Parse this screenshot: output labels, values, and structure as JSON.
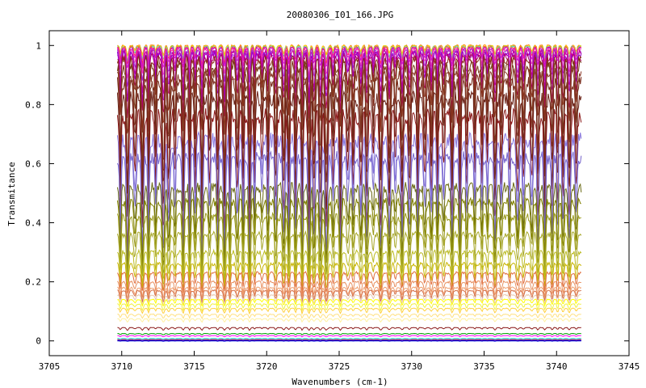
{
  "chart_data": {
    "type": "line",
    "title": "20080306_I01_166.JPG",
    "xlabel": "Wavenumbers (cm-1)",
    "ylabel": "Transmitance",
    "xlim": [
      3705,
      3745
    ],
    "ylim": [
      -0.05,
      1.05
    ],
    "x_ticks": [
      3705,
      3710,
      3715,
      3720,
      3725,
      3730,
      3735,
      3740,
      3745
    ],
    "y_ticks": [
      0,
      0.2,
      0.4,
      0.6,
      0.8,
      1
    ],
    "x_tick_labels": [
      "3705",
      "3710",
      "3715",
      "3720",
      "3725",
      "3730",
      "3735",
      "3740",
      "3745"
    ],
    "y_tick_labels": [
      "0",
      "0.2",
      "0.4",
      "0.6",
      "0.8",
      "1"
    ],
    "x_range": [
      3709.7,
      3741.7
    ],
    "grid": false,
    "legend": "none",
    "series_note_levels_and_colors": "baseline transmittance and absorption-line depth per spectrum",
    "series": [
      {
        "baseline": 1.0,
        "depth": 0.03,
        "color": "#ff7f00"
      },
      {
        "baseline": 0.998,
        "depth": 0.03,
        "color": "#ffd700"
      },
      {
        "baseline": 0.996,
        "depth": 0.04,
        "color": "#99cc33"
      },
      {
        "baseline": 0.995,
        "depth": 0.04,
        "color": "#66cccc"
      },
      {
        "baseline": 0.993,
        "depth": 0.05,
        "color": "#ff4040"
      },
      {
        "baseline": 0.99,
        "depth": 0.06,
        "color": "#cc00cc"
      },
      {
        "baseline": 0.985,
        "depth": 0.08,
        "color": "#ff33aa"
      },
      {
        "baseline": 0.98,
        "depth": 0.1,
        "color": "#9933cc"
      },
      {
        "baseline": 0.975,
        "depth": 0.13,
        "color": "#cc0099"
      },
      {
        "baseline": 0.97,
        "depth": 0.15,
        "color": "#9900cc"
      },
      {
        "baseline": 0.96,
        "depth": 0.18,
        "color": "#b0006a"
      },
      {
        "baseline": 0.95,
        "depth": 0.22,
        "color": "#8b2e1a"
      },
      {
        "baseline": 0.93,
        "depth": 0.3,
        "color": "#7a3b1a"
      },
      {
        "baseline": 0.9,
        "depth": 0.32,
        "color": "#8b3a2a"
      },
      {
        "baseline": 0.87,
        "depth": 0.33,
        "color": "#7a2e1e"
      },
      {
        "baseline": 0.82,
        "depth": 0.35,
        "color": "#6b2318"
      },
      {
        "baseline": 0.76,
        "depth": 0.38,
        "color": "#8b1a1a"
      },
      {
        "baseline": 0.68,
        "depth": 0.35,
        "color": "#8877dd"
      },
      {
        "baseline": 0.62,
        "depth": 0.3,
        "color": "#7766cc"
      },
      {
        "baseline": 0.52,
        "depth": 0.24,
        "color": "#6a6a14"
      },
      {
        "baseline": 0.47,
        "depth": 0.2,
        "color": "#808000"
      },
      {
        "baseline": 0.42,
        "depth": 0.18,
        "color": "#99991a"
      },
      {
        "baseline": 0.36,
        "depth": 0.14,
        "color": "#a8a82a"
      },
      {
        "baseline": 0.3,
        "depth": 0.1,
        "color": "#bbbb22"
      },
      {
        "baseline": 0.26,
        "depth": 0.08,
        "color": "#c8b400"
      },
      {
        "baseline": 0.23,
        "depth": 0.06,
        "color": "#e07040"
      },
      {
        "baseline": 0.2,
        "depth": 0.05,
        "color": "#e89060"
      },
      {
        "baseline": 0.18,
        "depth": 0.04,
        "color": "#f0a070"
      },
      {
        "baseline": 0.17,
        "depth": 0.035,
        "color": "#d4704a"
      },
      {
        "baseline": 0.155,
        "depth": 0.03,
        "color": "#e8c8b0"
      },
      {
        "baseline": 0.14,
        "depth": 0.02,
        "color": "#ffff00"
      },
      {
        "baseline": 0.125,
        "depth": 0.02,
        "color": "#f0f040"
      },
      {
        "baseline": 0.11,
        "depth": 0.015,
        "color": "#ffd040"
      },
      {
        "baseline": 0.09,
        "depth": 0.012,
        "color": "#ffe080"
      },
      {
        "baseline": 0.075,
        "depth": 0.01,
        "color": "#fff0a0"
      },
      {
        "baseline": 0.045,
        "depth": 0.008,
        "color": "#8b1a1a"
      },
      {
        "baseline": 0.025,
        "depth": 0.004,
        "color": "#00a000"
      },
      {
        "baseline": 0.018,
        "depth": 0.004,
        "color": "#ff00ff"
      },
      {
        "baseline": 0.008,
        "depth": 0.002,
        "color": "#00cccc"
      },
      {
        "baseline": 0.004,
        "depth": 0.002,
        "color": "#ff0000"
      },
      {
        "baseline": 0.002,
        "depth": 0.001,
        "color": "#0000ff"
      },
      {
        "baseline": 0.0,
        "depth": 0.001,
        "color": "#0000cc"
      }
    ]
  }
}
